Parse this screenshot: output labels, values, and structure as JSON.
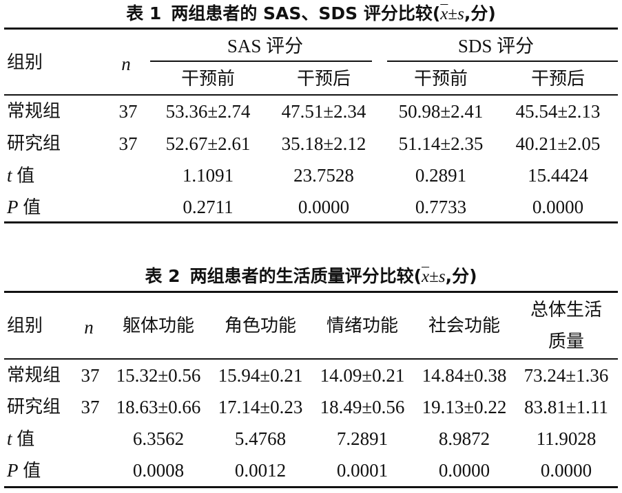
{
  "table1": {
    "caption": {
      "number": "表 1",
      "text_prefix": "两组患者的 SAS、SDS 评分比较(",
      "formula_x": "x",
      "formula_pm": "±",
      "formula_s": "s",
      "text_suffix": ",分)"
    },
    "header": {
      "group": "组别",
      "n": "n",
      "sas": "SAS 评分",
      "sds": "SDS 评分",
      "before": "干预前",
      "after": "干预后"
    },
    "rows": [
      {
        "label": "常规组",
        "n": "37",
        "sas_before": "53.36±2.74",
        "sas_after": "47.51±2.34",
        "sds_before": "50.98±2.41",
        "sds_after": "45.54±2.13"
      },
      {
        "label": "研究组",
        "n": "37",
        "sas_before": "52.67±2.61",
        "sas_after": "35.18±2.12",
        "sds_before": "51.14±2.35",
        "sds_after": "40.21±2.05"
      }
    ],
    "t_row": {
      "letter": "t",
      "suffix": "值",
      "values": [
        "1.1091",
        "23.7528",
        "0.2891",
        "15.4424"
      ]
    },
    "p_row": {
      "letter": "P",
      "suffix": "值",
      "values": [
        "0.2711",
        "0.0000",
        "0.7733",
        "0.0000"
      ]
    }
  },
  "table2": {
    "caption": {
      "number": "表 2",
      "text_prefix": "两组患者的生活质量评分比较(",
      "formula_x": "x",
      "formula_pm": "±",
      "formula_s": "s",
      "text_suffix": ",分)"
    },
    "header": {
      "group": "组别",
      "n": "n",
      "physical": "躯体功能",
      "role": "角色功能",
      "emotional": "情绪功能",
      "social": "社会功能",
      "overall_line1": "总体生活",
      "overall_line2": "质量"
    },
    "rows": [
      {
        "label": "常规组",
        "n": "37",
        "values": [
          "15.32±0.56",
          "15.94±0.21",
          "14.09±0.21",
          "14.84±0.38",
          "73.24±1.36"
        ]
      },
      {
        "label": "研究组",
        "n": "37",
        "values": [
          "18.63±0.66",
          "17.14±0.23",
          "18.49±0.56",
          "19.13±0.22",
          "83.81±1.11"
        ]
      }
    ],
    "t_row": {
      "letter": "t",
      "suffix": "值",
      "values": [
        "6.3562",
        "5.4768",
        "7.2891",
        "8.9872",
        "11.9028"
      ]
    },
    "p_row": {
      "letter": "P",
      "suffix": "值",
      "values": [
        "0.0008",
        "0.0012",
        "0.0001",
        "0.0000",
        "0.0000"
      ]
    }
  }
}
